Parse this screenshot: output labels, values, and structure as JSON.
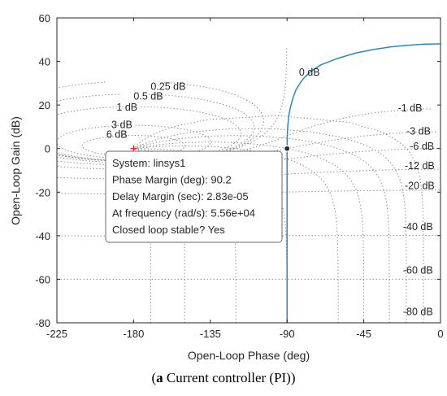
{
  "caption": {
    "letter": "a",
    "text": " Current controller (PI)"
  },
  "chart_data": {
    "type": "line",
    "title": "",
    "xlabel": "Open-Loop Phase (deg)",
    "ylabel": "Open-Loop Gain (dB)",
    "xlim": [
      -225,
      0
    ],
    "ylim": [
      -80,
      60
    ],
    "xticks": [
      -225,
      -180,
      -135,
      -90,
      -45,
      0
    ],
    "yticks": [
      -80,
      -60,
      -40,
      -20,
      0,
      20,
      40,
      60
    ],
    "grid": "nichols",
    "series": [
      {
        "color": "#2E86C1",
        "x": [
          -90,
          -90,
          -90,
          -90,
          -89.9,
          -89.6,
          -89,
          -88,
          -87,
          -86,
          -85,
          -84,
          -82,
          -80,
          -76,
          -70,
          -60,
          -50,
          -40,
          -30,
          -20,
          -10,
          -5,
          0
        ],
        "y": [
          -80,
          -40,
          -10,
          0,
          5,
          10,
          15,
          19,
          22,
          24.5,
          26.5,
          28,
          30.5,
          32.5,
          35.5,
          38.5,
          41.5,
          43.8,
          45.4,
          46.6,
          47.4,
          47.9,
          48,
          48.05
        ]
      }
    ],
    "grid_labels": {
      "left": [
        "0.25 dB",
        "0.5 dB",
        "1 dB",
        "3 dB",
        "6 dB"
      ],
      "top": "0 dB",
      "right": [
        "-1 dB",
        "-3 dB",
        "-6 dB",
        "-12 dB",
        "-20 dB",
        "-40 dB",
        "-60 dB",
        "-80 dB"
      ]
    },
    "marker": {
      "x": -90,
      "y": 0
    },
    "critical_point": {
      "x": -180,
      "y": 0
    },
    "datatip": {
      "lines": [
        "System: linsys1",
        "Phase Margin (deg): 90.2",
        "Delay Margin (sec): 2.83e-05",
        "At frequency (rad/s): 5.56e+04",
        "Closed loop stable? Yes"
      ]
    }
  }
}
